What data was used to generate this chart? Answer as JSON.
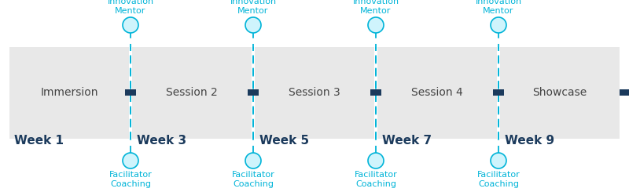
{
  "figsize": [
    8.0,
    2.45
  ],
  "dpi": 100,
  "bg_color": "#ffffff",
  "box_color_light": "#e8e8e8",
  "box_color_dark": "#d8d8d8",
  "dark_blue": "#1b3a5c",
  "cyan": "#00b4d8",
  "cyan_light": "#cff4fc",
  "week_labels": [
    "Week 1",
    "Week 3",
    "Week 5",
    "Week 7",
    "Week 9"
  ],
  "session_labels": [
    "Immersion",
    "Session 2",
    "Session 3",
    "Session 4",
    "Showcase"
  ],
  "facilitator_label": "Facilitator\nCoaching",
  "mentor_label": "Innovation\nMentor",
  "week_label_fontsize": 11,
  "session_label_fontsize": 10,
  "annotation_fontsize": 8
}
